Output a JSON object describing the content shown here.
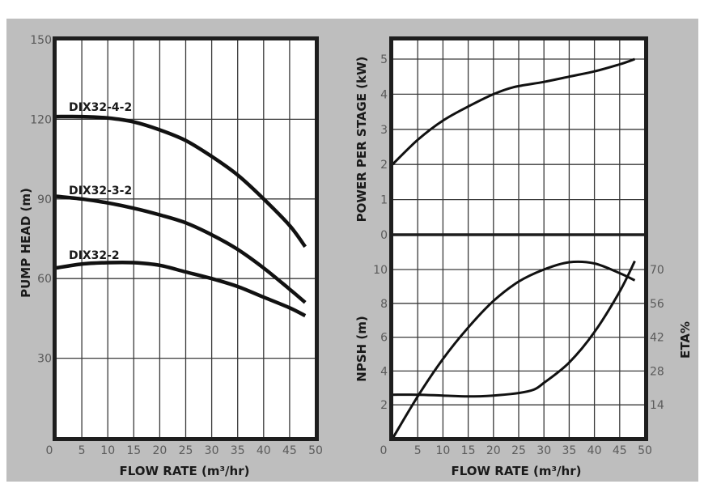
{
  "chart_data": [
    {
      "type": "line",
      "title": "",
      "xlabel": "FLOW RATE (m³/hr)",
      "ylabel": "PUMP HEAD (m)",
      "xlim": [
        0,
        50
      ],
      "ylim": [
        0,
        150
      ],
      "x_ticks": [
        "0",
        "5",
        "10",
        "15",
        "20",
        "25",
        "30",
        "35",
        "40",
        "45",
        "50"
      ],
      "y_ticks": [
        "30",
        "60",
        "90",
        "120",
        "150"
      ],
      "grid": true,
      "legend": "inline labels",
      "series": [
        {
          "name": "DIX32-4-2",
          "x": [
            0,
            5,
            10,
            15,
            20,
            25,
            30,
            35,
            40,
            45,
            48
          ],
          "values": [
            121,
            121,
            120.5,
            119,
            116,
            112,
            106,
            99,
            90,
            80,
            72
          ]
        },
        {
          "name": "DIX32-3-2",
          "x": [
            0,
            5,
            10,
            15,
            20,
            25,
            30,
            35,
            40,
            45,
            48
          ],
          "values": [
            91,
            90,
            88.5,
            86.5,
            84,
            81,
            76.5,
            71,
            64,
            56,
            51
          ]
        },
        {
          "name": "DIX32-2",
          "x": [
            0,
            5,
            10,
            15,
            20,
            25,
            30,
            35,
            40,
            45,
            48
          ],
          "values": [
            64,
            65.5,
            66,
            66,
            65,
            62.5,
            60,
            57,
            53,
            49,
            46
          ]
        }
      ]
    },
    {
      "type": "line",
      "title": "",
      "xlabel": "FLOW RATE (m³/hr)",
      "ylabel": "POWER PER STAGE (kW)",
      "xlim": [
        0,
        50
      ],
      "ylim": [
        0,
        5.5
      ],
      "y_ticks": [
        "0",
        "1",
        "2",
        "3",
        "4",
        "5"
      ],
      "grid": true,
      "series": [
        {
          "name": "Power per stage",
          "x": [
            0,
            5,
            10,
            15,
            20,
            24,
            30,
            35,
            40,
            45,
            48
          ],
          "values": [
            2.0,
            2.7,
            3.25,
            3.65,
            4.0,
            4.2,
            4.35,
            4.5,
            4.65,
            4.85,
            5.0
          ]
        }
      ]
    },
    {
      "type": "line",
      "title": "",
      "xlabel": "FLOW RATE (m³/hr)",
      "ylabel": "NPSH (m)",
      "y2label": "ETA%",
      "xlim": [
        0,
        50
      ],
      "ylim": [
        0,
        11
      ],
      "y2lim": [
        0,
        77
      ],
      "x_ticks": [
        "0",
        "5",
        "10",
        "15",
        "20",
        "25",
        "30",
        "35",
        "40",
        "45",
        "50"
      ],
      "y_ticks": [
        "2",
        "4",
        "6",
        "8",
        "10"
      ],
      "y2_ticks": [
        "14",
        "28",
        "42",
        "56",
        "70"
      ],
      "grid": true,
      "series": [
        {
          "name": "NPSH",
          "axis": "left",
          "x": [
            0,
            5,
            10,
            15,
            20,
            25,
            28,
            30,
            35,
            40,
            45,
            48
          ],
          "values": [
            2.6,
            2.6,
            2.55,
            2.5,
            2.55,
            2.7,
            2.9,
            3.3,
            4.5,
            6.3,
            8.7,
            10.5
          ]
        },
        {
          "name": "ETA%",
          "axis": "right",
          "x": [
            0,
            5,
            10,
            15,
            20,
            25,
            30,
            35,
            40,
            45,
            48
          ],
          "values": [
            0,
            17.5,
            33,
            46,
            57,
            65,
            70,
            73,
            72.5,
            68.5,
            65.5
          ]
        }
      ]
    }
  ],
  "labels": {
    "left_ylabel": "PUMP HEAD (m)",
    "left_xlabel": "FLOW RATE (m³/hr)",
    "power_ylabel": "POWER PER STAGE (kW)",
    "npsh_ylabel": "NPSH (m)",
    "eta_ylabel": "ETA%",
    "right_xlabel": "FLOW RATE (m³/hr)",
    "series_4_2": "DIX32-4-2",
    "series_3_2": "DIX32-3-2",
    "series_2": "DIX32-2"
  },
  "ticks": {
    "x": [
      "0",
      "5",
      "10",
      "15",
      "20",
      "25",
      "30",
      "35",
      "40",
      "45",
      "50"
    ],
    "head": [
      "30",
      "60",
      "90",
      "120",
      "150"
    ],
    "power": [
      "0",
      "1",
      "2",
      "3",
      "4",
      "5"
    ],
    "npsh": [
      "2",
      "4",
      "6",
      "8",
      "10"
    ],
    "eta": [
      "14",
      "28",
      "42",
      "56",
      "70"
    ]
  }
}
